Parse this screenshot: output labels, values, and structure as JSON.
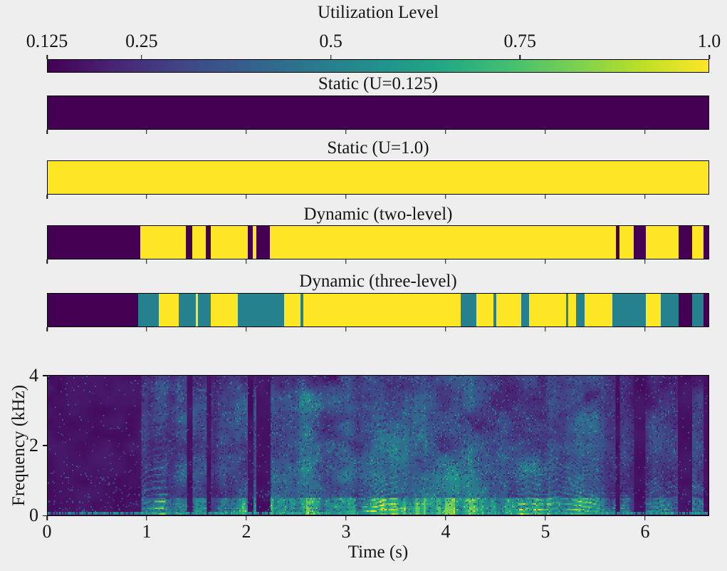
{
  "chart_data": [
    {
      "type": "heatmap",
      "role": "colorbar",
      "title": "Utilization Level",
      "orientation": "horizontal",
      "colormap": "viridis",
      "vmin": 0.125,
      "vmax": 1.0,
      "ticks": [
        0.125,
        0.25,
        0.5,
        0.75,
        1.0
      ],
      "tick_labels": [
        "0.125",
        "0.25",
        "0.5",
        "0.75",
        "1.0"
      ],
      "ticks_position": "top",
      "gradient": [
        "#440154",
        "#482475",
        "#414487",
        "#355f8d",
        "#2a788e",
        "#21918c",
        "#22a884",
        "#44bf70",
        "#7ad151",
        "#bddf26",
        "#fde725"
      ],
      "level_colors": {
        "0.125": "#440154",
        "0.5": "#26818e",
        "1": "#fde725"
      }
    },
    {
      "type": "heatmap",
      "role": "utilization-strip",
      "title": "Static (U=0.125)",
      "x_range_s": [
        0,
        6.643
      ],
      "segments": [
        {
          "t0": 0,
          "t1": 6.643,
          "u": 0.125
        }
      ]
    },
    {
      "type": "heatmap",
      "role": "utilization-strip",
      "title": "Static (U=1.0)",
      "x_range_s": [
        0,
        6.643
      ],
      "segments": [
        {
          "t0": 0,
          "t1": 6.643,
          "u": 1
        }
      ]
    },
    {
      "type": "heatmap",
      "role": "utilization-strip",
      "title": "Dynamic (two-level)",
      "x_range_s": [
        0,
        6.643
      ],
      "segments": [
        {
          "t0": 0.0,
          "t1": 0.93,
          "u": 0.125
        },
        {
          "t0": 0.93,
          "t1": 1.39,
          "u": 1
        },
        {
          "t0": 1.39,
          "t1": 1.45,
          "u": 0.125
        },
        {
          "t0": 1.45,
          "t1": 1.59,
          "u": 1
        },
        {
          "t0": 1.59,
          "t1": 1.64,
          "u": 0.125
        },
        {
          "t0": 1.64,
          "t1": 2.01,
          "u": 1
        },
        {
          "t0": 2.01,
          "t1": 2.06,
          "u": 0.125
        },
        {
          "t0": 2.06,
          "t1": 2.1,
          "u": 1
        },
        {
          "t0": 2.1,
          "t1": 2.23,
          "u": 0.125
        },
        {
          "t0": 2.23,
          "t1": 5.71,
          "u": 1
        },
        {
          "t0": 5.71,
          "t1": 5.75,
          "u": 0.125
        },
        {
          "t0": 5.75,
          "t1": 5.89,
          "u": 1
        },
        {
          "t0": 5.89,
          "t1": 6.01,
          "u": 0.125
        },
        {
          "t0": 6.01,
          "t1": 6.34,
          "u": 1
        },
        {
          "t0": 6.34,
          "t1": 6.48,
          "u": 0.125
        },
        {
          "t0": 6.48,
          "t1": 6.59,
          "u": 1
        },
        {
          "t0": 6.59,
          "t1": 6.643,
          "u": 0.125
        }
      ]
    },
    {
      "type": "heatmap",
      "role": "utilization-strip",
      "title": "Dynamic (three-level)",
      "x_range_s": [
        0,
        6.643
      ],
      "segments": [
        {
          "t0": 0.0,
          "t1": 0.91,
          "u": 0.125
        },
        {
          "t0": 0.91,
          "t1": 1.12,
          "u": 0.5
        },
        {
          "t0": 1.12,
          "t1": 1.32,
          "u": 1
        },
        {
          "t0": 1.32,
          "t1": 1.49,
          "u": 0.5
        },
        {
          "t0": 1.49,
          "t1": 1.51,
          "u": 1
        },
        {
          "t0": 1.51,
          "t1": 1.64,
          "u": 0.5
        },
        {
          "t0": 1.64,
          "t1": 1.91,
          "u": 1
        },
        {
          "t0": 1.91,
          "t1": 2.38,
          "u": 0.5
        },
        {
          "t0": 2.38,
          "t1": 2.54,
          "u": 1
        },
        {
          "t0": 2.54,
          "t1": 2.57,
          "u": 0.5
        },
        {
          "t0": 2.57,
          "t1": 4.15,
          "u": 1
        },
        {
          "t0": 4.15,
          "t1": 4.31,
          "u": 0.5
        },
        {
          "t0": 4.31,
          "t1": 4.48,
          "u": 1
        },
        {
          "t0": 4.48,
          "t1": 4.51,
          "u": 0.5
        },
        {
          "t0": 4.51,
          "t1": 4.76,
          "u": 1
        },
        {
          "t0": 4.76,
          "t1": 4.84,
          "u": 0.5
        },
        {
          "t0": 4.84,
          "t1": 5.21,
          "u": 1
        },
        {
          "t0": 5.21,
          "t1": 5.23,
          "u": 0.5
        },
        {
          "t0": 5.23,
          "t1": 5.31,
          "u": 1
        },
        {
          "t0": 5.31,
          "t1": 5.4,
          "u": 0.5
        },
        {
          "t0": 5.4,
          "t1": 5.68,
          "u": 1
        },
        {
          "t0": 5.68,
          "t1": 6.01,
          "u": 0.5
        },
        {
          "t0": 6.01,
          "t1": 6.16,
          "u": 1
        },
        {
          "t0": 6.16,
          "t1": 6.34,
          "u": 0.5
        },
        {
          "t0": 6.34,
          "t1": 6.48,
          "u": 0.125
        },
        {
          "t0": 6.48,
          "t1": 6.59,
          "u": 0.5
        },
        {
          "t0": 6.59,
          "t1": 6.643,
          "u": 0.125
        }
      ]
    },
    {
      "type": "heatmap",
      "role": "spectrogram",
      "xlabel": "Time (s)",
      "ylabel": "Frequency (kHz)",
      "x_range_s": [
        0,
        6.643
      ],
      "y_range_khz": [
        0,
        4
      ],
      "x_ticks": [
        0,
        1,
        2,
        3,
        4,
        5,
        6
      ],
      "x_tick_labels": [
        "0",
        "1",
        "2",
        "3",
        "4",
        "5",
        "6"
      ],
      "y_ticks": [
        0,
        2,
        4
      ],
      "y_tick_labels": [
        "0",
        "2",
        "4"
      ],
      "colormap": "viridis",
      "silence_intervals_s": [
        [
          0,
          0.93
        ],
        [
          2.01,
          2.06
        ],
        [
          2.1,
          2.23
        ],
        [
          5.71,
          5.75
        ],
        [
          5.89,
          6.01
        ],
        [
          6.34,
          6.48
        ],
        [
          6.59,
          6.643
        ]
      ],
      "description": "Speech spectrogram: silence (dark purple) until ~0.93 s, then continuous speech energy with harmonic striations below ~1.5 kHz, a bright yellow band below ~0.4 kHz, curved pitch arcs near 1-2.2 s, brief dark pauses near 2.0-2.2 s and quieter darker region from ~5.7 s to the end at 6.64 s."
    }
  ],
  "figure": {
    "background_color": "#eeeeee",
    "text_color": "#151515"
  }
}
